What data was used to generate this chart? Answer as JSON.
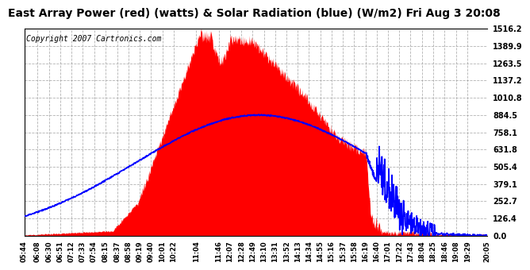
{
  "title": "East Array Power (red) (watts) & Solar Radiation (blue) (W/m2) Fri Aug 3 20:08",
  "copyright": "Copyright 2007 Cartronics.com",
  "bg_color": "#ffffff",
  "plot_bg_color": "#ffffff",
  "grid_color": "#aaaaaa",
  "yticks": [
    0.0,
    126.4,
    252.7,
    379.1,
    505.4,
    631.8,
    758.1,
    884.5,
    1010.8,
    1137.2,
    1263.5,
    1389.9,
    1516.2
  ],
  "ymax": 1516.2,
  "xtick_labels": [
    "05:44",
    "06:08",
    "06:30",
    "06:51",
    "07:12",
    "07:33",
    "07:54",
    "08:15",
    "08:37",
    "08:58",
    "09:19",
    "09:40",
    "10:01",
    "10:22",
    "11:04",
    "11:46",
    "12:07",
    "12:28",
    "12:49",
    "13:10",
    "13:31",
    "13:52",
    "14:13",
    "14:34",
    "14:55",
    "15:16",
    "15:37",
    "15:58",
    "16:19",
    "16:40",
    "17:01",
    "17:22",
    "17:43",
    "18:04",
    "18:25",
    "18:46",
    "19:08",
    "19:29",
    "20:05"
  ],
  "red_fill_color": "#ff0000",
  "blue_line_color": "#0000ff",
  "title_fontsize": 10,
  "copyright_fontsize": 7
}
